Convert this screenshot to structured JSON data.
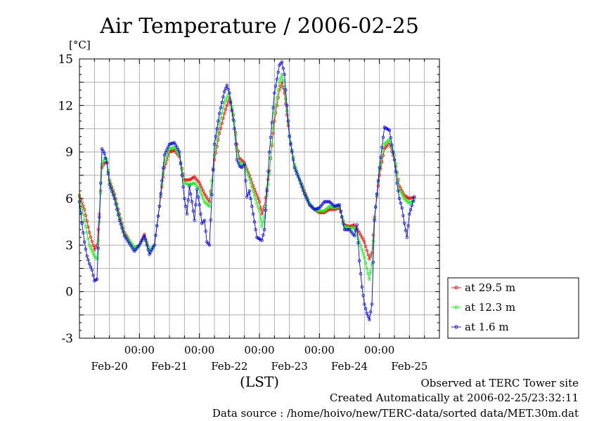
{
  "footer": {
    "observed": "Observed at TERC Tower site",
    "created": "Created Automatically at 2006-02-25/23:32:11",
    "source": "Data source : /home/hoivo/new/TERC-data/sorted  data/MET.30m.dat"
  },
  "chart_data": {
    "type": "line",
    "title": "Air Temperature / 2006-02-25",
    "ylabel": "[°C]",
    "xlabel": "(LST)",
    "ylim": [
      -3,
      15
    ],
    "xlim": [
      0,
      144
    ],
    "yticks": [
      {
        "value": 15,
        "label": "15"
      },
      {
        "value": 12,
        "label": "12"
      },
      {
        "value": 9,
        "label": "9"
      },
      {
        "value": 6,
        "label": "6"
      },
      {
        "value": 3,
        "label": "3"
      },
      {
        "value": 0,
        "label": "0"
      },
      {
        "value": -3,
        "label": "-3"
      }
    ],
    "xticks": [
      {
        "value": 24,
        "time": "00:00",
        "date": "Feb-21"
      },
      {
        "value": 48,
        "time": "00:00",
        "date": "Feb-22"
      },
      {
        "value": 72,
        "time": "00:00",
        "date": "Feb-23"
      },
      {
        "value": 96,
        "time": "00:00",
        "date": "Feb-24"
      },
      {
        "value": 120,
        "time": "00:00",
        "date": "Feb-25"
      }
    ],
    "xdate_labels": [
      {
        "value": 12,
        "label": "Feb-20"
      },
      {
        "value": 36,
        "label": "Feb-21"
      },
      {
        "value": 60,
        "label": "Feb-22"
      },
      {
        "value": 84,
        "label": "Feb-23"
      },
      {
        "value": 108,
        "label": "Feb-24"
      },
      {
        "value": 132,
        "label": "Feb-25"
      }
    ],
    "grid": true,
    "legend_position": "bottom-right",
    "series": [
      {
        "name": "at 29.5 m",
        "color": "#ff0000",
        "points": [
          [
            0,
            6.2
          ],
          [
            2,
            5.3
          ],
          [
            4,
            3.8
          ],
          [
            6,
            2.7
          ],
          [
            7,
            3.0
          ],
          [
            8,
            5.0
          ],
          [
            9,
            8.0
          ],
          [
            10,
            8.3
          ],
          [
            11,
            8.3
          ],
          [
            12,
            7.2
          ],
          [
            14,
            6.3
          ],
          [
            16,
            5.0
          ],
          [
            18,
            3.8
          ],
          [
            20,
            3.3
          ],
          [
            22,
            2.8
          ],
          [
            24,
            3.0
          ],
          [
            26,
            3.7
          ],
          [
            28,
            2.6
          ],
          [
            30,
            3.0
          ],
          [
            32,
            5.5
          ],
          [
            34,
            8.0
          ],
          [
            36,
            9.0
          ],
          [
            38,
            9.1
          ],
          [
            40,
            8.7
          ],
          [
            42,
            7.2
          ],
          [
            44,
            7.2
          ],
          [
            46,
            7.4
          ],
          [
            48,
            7.0
          ],
          [
            50,
            6.3
          ],
          [
            52,
            5.8
          ],
          [
            54,
            8.5
          ],
          [
            56,
            10.2
          ],
          [
            58,
            11.5
          ],
          [
            60,
            12.5
          ],
          [
            62,
            11.0
          ],
          [
            63,
            9.5
          ],
          [
            64,
            8.6
          ],
          [
            66,
            8.3
          ],
          [
            68,
            7.5
          ],
          [
            70,
            6.6
          ],
          [
            72,
            5.8
          ],
          [
            73,
            5.0
          ],
          [
            74,
            5.5
          ],
          [
            76,
            7.8
          ],
          [
            78,
            11.0
          ],
          [
            80,
            13.0
          ],
          [
            81,
            13.5
          ],
          [
            82,
            12.8
          ],
          [
            84,
            10.0
          ],
          [
            86,
            8.2
          ],
          [
            88,
            7.3
          ],
          [
            90,
            6.5
          ],
          [
            92,
            5.7
          ],
          [
            94,
            5.3
          ],
          [
            96,
            5.1
          ],
          [
            98,
            5.1
          ],
          [
            100,
            5.3
          ],
          [
            102,
            5.3
          ],
          [
            104,
            5.4
          ],
          [
            106,
            4.3
          ],
          [
            108,
            4.2
          ],
          [
            110,
            4.3
          ],
          [
            112,
            3.8
          ],
          [
            114,
            3.2
          ],
          [
            116,
            2.1
          ],
          [
            117,
            2.5
          ],
          [
            118,
            4.8
          ],
          [
            120,
            7.5
          ],
          [
            122,
            9.2
          ],
          [
            124,
            9.6
          ],
          [
            126,
            8.5
          ],
          [
            128,
            6.8
          ],
          [
            130,
            6.2
          ],
          [
            132,
            6.0
          ],
          [
            134,
            6.1
          ]
        ]
      },
      {
        "name": "at 12.3 m",
        "color": "#00ff00",
        "points": [
          [
            0,
            6.1
          ],
          [
            2,
            4.6
          ],
          [
            4,
            3.0
          ],
          [
            6,
            2.3
          ],
          [
            7,
            2.1
          ],
          [
            8,
            4.5
          ],
          [
            9,
            8.2
          ],
          [
            10,
            8.6
          ],
          [
            11,
            8.5
          ],
          [
            12,
            7.1
          ],
          [
            14,
            6.2
          ],
          [
            16,
            4.8
          ],
          [
            18,
            3.7
          ],
          [
            20,
            3.3
          ],
          [
            22,
            2.8
          ],
          [
            24,
            3.0
          ],
          [
            26,
            3.6
          ],
          [
            28,
            2.6
          ],
          [
            30,
            3.0
          ],
          [
            32,
            5.5
          ],
          [
            34,
            8.3
          ],
          [
            36,
            9.2
          ],
          [
            38,
            9.3
          ],
          [
            40,
            8.8
          ],
          [
            42,
            7.0
          ],
          [
            44,
            6.9
          ],
          [
            46,
            7.0
          ],
          [
            48,
            6.6
          ],
          [
            50,
            5.8
          ],
          [
            52,
            5.5
          ],
          [
            54,
            8.8
          ],
          [
            56,
            10.8
          ],
          [
            58,
            12.2
          ],
          [
            60,
            12.8
          ],
          [
            62,
            11.0
          ],
          [
            63,
            9.2
          ],
          [
            64,
            8.3
          ],
          [
            66,
            8.2
          ],
          [
            68,
            7.3
          ],
          [
            70,
            6.2
          ],
          [
            72,
            5.2
          ],
          [
            73,
            4.2
          ],
          [
            74,
            4.8
          ],
          [
            76,
            7.6
          ],
          [
            78,
            11.5
          ],
          [
            80,
            13.5
          ],
          [
            81,
            14.0
          ],
          [
            82,
            13.2
          ],
          [
            84,
            10.1
          ],
          [
            86,
            8.2
          ],
          [
            88,
            7.3
          ],
          [
            90,
            6.4
          ],
          [
            92,
            5.7
          ],
          [
            94,
            5.3
          ],
          [
            96,
            5.2
          ],
          [
            98,
            5.2
          ],
          [
            100,
            5.5
          ],
          [
            102,
            5.4
          ],
          [
            104,
            5.5
          ],
          [
            106,
            4.2
          ],
          [
            108,
            4.1
          ],
          [
            110,
            4.1
          ],
          [
            112,
            3.2
          ],
          [
            114,
            2.2
          ],
          [
            116,
            0.8
          ],
          [
            117,
            1.8
          ],
          [
            118,
            4.7
          ],
          [
            120,
            7.8
          ],
          [
            122,
            9.5
          ],
          [
            124,
            9.8
          ],
          [
            126,
            8.8
          ],
          [
            128,
            6.6
          ],
          [
            130,
            6.0
          ],
          [
            132,
            5.7
          ],
          [
            134,
            5.9
          ]
        ]
      },
      {
        "name": "at 1.6 m",
        "color": "#0000ff",
        "points": [
          [
            0,
            5.8
          ],
          [
            1,
            4.4
          ],
          [
            2,
            3.2
          ],
          [
            3,
            2.3
          ],
          [
            4,
            1.8
          ],
          [
            5,
            1.4
          ],
          [
            6,
            0.7
          ],
          [
            7,
            0.8
          ],
          [
            8,
            4.8
          ],
          [
            9,
            9.2
          ],
          [
            10,
            8.9
          ],
          [
            11,
            8.3
          ],
          [
            12,
            6.9
          ],
          [
            14,
            6.0
          ],
          [
            16,
            4.6
          ],
          [
            18,
            3.6
          ],
          [
            20,
            3.1
          ],
          [
            22,
            2.6
          ],
          [
            24,
            3.0
          ],
          [
            26,
            3.6
          ],
          [
            28,
            2.4
          ],
          [
            30,
            3.0
          ],
          [
            32,
            5.5
          ],
          [
            34,
            8.8
          ],
          [
            36,
            9.5
          ],
          [
            38,
            9.6
          ],
          [
            40,
            9.0
          ],
          [
            42,
            6.0
          ],
          [
            43,
            5.0
          ],
          [
            44,
            6.8
          ],
          [
            45,
            5.8
          ],
          [
            46,
            4.6
          ],
          [
            47,
            6.6
          ],
          [
            48,
            5.6
          ],
          [
            49,
            4.4
          ],
          [
            50,
            4.6
          ],
          [
            51,
            3.2
          ],
          [
            52,
            3.0
          ],
          [
            54,
            9.5
          ],
          [
            56,
            11.5
          ],
          [
            58,
            12.9
          ],
          [
            59,
            13.3
          ],
          [
            60,
            12.8
          ],
          [
            62,
            10.5
          ],
          [
            63,
            8.5
          ],
          [
            64,
            8.1
          ],
          [
            65,
            8.0
          ],
          [
            66,
            8.2
          ],
          [
            67,
            6.1
          ],
          [
            68,
            6.5
          ],
          [
            70,
            4.5
          ],
          [
            71,
            3.5
          ],
          [
            72,
            3.4
          ],
          [
            73,
            3.3
          ],
          [
            74,
            4.0
          ],
          [
            76,
            9.0
          ],
          [
            78,
            12.8
          ],
          [
            80,
            14.6
          ],
          [
            81,
            14.8
          ],
          [
            82,
            14.0
          ],
          [
            84,
            10.0
          ],
          [
            86,
            8.0
          ],
          [
            88,
            7.2
          ],
          [
            90,
            6.3
          ],
          [
            92,
            5.6
          ],
          [
            94,
            5.3
          ],
          [
            96,
            5.4
          ],
          [
            98,
            5.8
          ],
          [
            100,
            5.8
          ],
          [
            102,
            5.5
          ],
          [
            104,
            5.6
          ],
          [
            106,
            4.0
          ],
          [
            108,
            4.0
          ],
          [
            110,
            3.6
          ],
          [
            111,
            4.3
          ],
          [
            112,
            2.0
          ],
          [
            113,
            0.3
          ],
          [
            114,
            -0.8
          ],
          [
            115,
            -1.4
          ],
          [
            116,
            -1.8
          ],
          [
            117,
            -0.8
          ],
          [
            118,
            4.6
          ],
          [
            120,
            8.0
          ],
          [
            122,
            10.6
          ],
          [
            124,
            10.4
          ],
          [
            126,
            8.5
          ],
          [
            127,
            7.0
          ],
          [
            128,
            6.0
          ],
          [
            129,
            5.4
          ],
          [
            130,
            4.4
          ],
          [
            131,
            3.5
          ],
          [
            132,
            5.0
          ],
          [
            134,
            6.1
          ]
        ]
      }
    ]
  }
}
